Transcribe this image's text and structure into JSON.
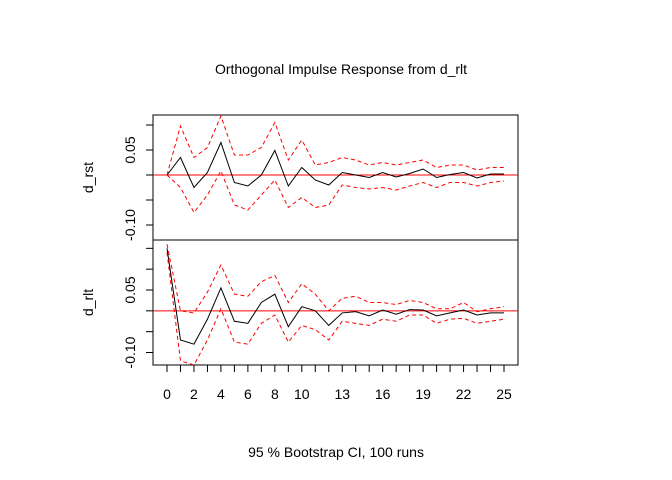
{
  "chart_data": {
    "type": "line",
    "title": "Orthogonal Impulse Response from d_rlt",
    "xlabel": "95 % Bootstrap CI,  100 runs",
    "x": [
      0,
      1,
      2,
      3,
      4,
      5,
      6,
      7,
      8,
      9,
      10,
      11,
      12,
      13,
      14,
      15,
      16,
      17,
      18,
      19,
      20,
      21,
      22,
      23,
      24,
      25
    ],
    "xticks": [
      "0",
      "2",
      "4",
      "6",
      "8",
      "10",
      "13",
      "16",
      "19",
      "22",
      "25"
    ],
    "xtick_values": [
      0,
      2,
      4,
      6,
      8,
      10,
      13,
      16,
      19,
      22,
      25
    ],
    "xlim": [
      0,
      25
    ],
    "colors": {
      "irf": "#000000",
      "ci": "#ff0000",
      "zero": "#ff0000"
    },
    "panels": [
      {
        "ylabel": "d_rst",
        "ylim": [
          -0.13,
          0.12
        ],
        "yticks": [
          "0.05",
          "-0.10"
        ],
        "ytick_values": [
          0.05,
          -0.1
        ],
        "series": [
          {
            "role": "irf",
            "values": [
              0.0,
              0.035,
              -0.025,
              0.005,
              0.065,
              -0.015,
              -0.022,
              0.0,
              0.049,
              -0.022,
              0.015,
              -0.01,
              -0.02,
              0.005,
              0.0,
              -0.005,
              0.005,
              -0.004,
              0.003,
              0.012,
              -0.005,
              0.001,
              0.005,
              -0.006,
              0.002,
              0.002
            ]
          },
          {
            "role": "ci_upper",
            "values": [
              0.0,
              0.098,
              0.035,
              0.055,
              0.118,
              0.04,
              0.04,
              0.055,
              0.105,
              0.03,
              0.07,
              0.02,
              0.025,
              0.035,
              0.03,
              0.02,
              0.025,
              0.02,
              0.025,
              0.03,
              0.015,
              0.02,
              0.02,
              0.01,
              0.015,
              0.015
            ]
          },
          {
            "role": "ci_lower",
            "values": [
              0.0,
              -0.025,
              -0.075,
              -0.04,
              0.008,
              -0.06,
              -0.07,
              -0.04,
              -0.01,
              -0.065,
              -0.045,
              -0.065,
              -0.06,
              -0.02,
              -0.025,
              -0.028,
              -0.025,
              -0.03,
              -0.022,
              -0.015,
              -0.025,
              -0.015,
              -0.015,
              -0.022,
              -0.015,
              -0.012
            ]
          }
        ]
      },
      {
        "ylabel": "d_rlt",
        "ylim": [
          -0.13,
          0.17
        ],
        "yticks": [
          "0.05",
          "-0.10"
        ],
        "ytick_values": [
          0.05,
          -0.1
        ],
        "series": [
          {
            "role": "irf",
            "values": [
              0.15,
              -0.07,
              -0.08,
              -0.02,
              0.055,
              -0.025,
              -0.03,
              0.02,
              0.04,
              -0.038,
              0.01,
              0.0,
              -0.035,
              -0.005,
              -0.002,
              -0.012,
              0.002,
              -0.008,
              0.003,
              0.002,
              -0.012,
              -0.005,
              0.002,
              -0.01,
              -0.005,
              -0.005
            ]
          },
          {
            "role": "ci_upper",
            "values": [
              0.16,
              0.0,
              -0.005,
              0.045,
              0.11,
              0.04,
              0.035,
              0.07,
              0.085,
              0.02,
              0.065,
              0.04,
              0.0,
              0.03,
              0.035,
              0.02,
              0.02,
              0.015,
              0.025,
              0.02,
              0.005,
              0.005,
              0.02,
              -0.002,
              0.005,
              0.01
            ]
          },
          {
            "role": "ci_lower",
            "values": [
              0.14,
              -0.12,
              -0.13,
              -0.07,
              0.005,
              -0.075,
              -0.08,
              -0.03,
              -0.01,
              -0.075,
              -0.035,
              -0.045,
              -0.07,
              -0.025,
              -0.03,
              -0.035,
              -0.02,
              -0.025,
              -0.01,
              -0.01,
              -0.03,
              -0.02,
              -0.018,
              -0.03,
              -0.025,
              -0.02
            ]
          }
        ]
      }
    ]
  }
}
